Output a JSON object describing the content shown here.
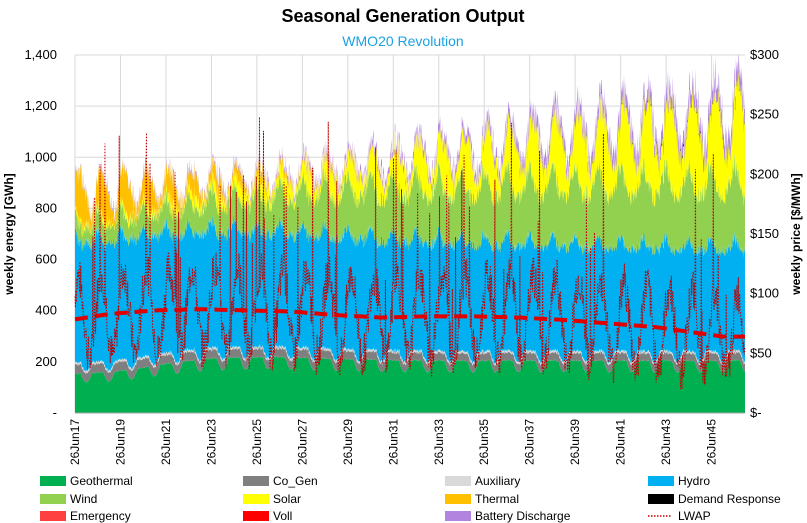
{
  "chart_data": {
    "type": "area",
    "title": "Seasonal Generation Output",
    "subtitle": "WMO20 Revolution",
    "ylabel": "weekly energy [GWh]",
    "y2label": "weekly price [$/MWh]",
    "ylim": [
      0,
      1400
    ],
    "y2lim": [
      0,
      300
    ],
    "yticks": [
      0,
      200,
      400,
      600,
      800,
      1000,
      1200,
      1400
    ],
    "ytick_labels": [
      "-",
      "200",
      "400",
      "600",
      "800",
      "1,000",
      "1,200",
      "1,400"
    ],
    "y2ticks": [
      0,
      50,
      100,
      150,
      200,
      250,
      300
    ],
    "y2tick_labels": [
      "$-",
      "$50",
      "$100",
      "$150",
      "$200",
      "$250",
      "$300"
    ],
    "x_start_year": 2017,
    "x_end_year": 2046,
    "xtick_labels": [
      "26Jun17",
      "26Jun19",
      "26Jun21",
      "26Jun23",
      "26Jun25",
      "26Jun27",
      "26Jun29",
      "26Jun31",
      "26Jun33",
      "26Jun35",
      "26Jun37",
      "26Jun39",
      "26Jun41",
      "26Jun43",
      "26Jun45"
    ],
    "grid": true,
    "legend_position": "bottom",
    "series_annual": {
      "years": [
        2017,
        2018,
        2019,
        2020,
        2021,
        2022,
        2023,
        2024,
        2025,
        2026,
        2027,
        2028,
        2029,
        2030,
        2031,
        2032,
        2033,
        2034,
        2035,
        2036,
        2037,
        2038,
        2039,
        2040,
        2041,
        2042,
        2043,
        2044,
        2045,
        2046
      ],
      "Geothermal": [
        150,
        155,
        160,
        170,
        185,
        200,
        210,
        215,
        218,
        220,
        218,
        215,
        212,
        210,
        208,
        205,
        205,
        205,
        205,
        205,
        205,
        205,
        205,
        205,
        205,
        205,
        205,
        205,
        205,
        205
      ],
      "Co_Gen": [
        35,
        35,
        35,
        35,
        35,
        35,
        35,
        34,
        34,
        33,
        33,
        32,
        32,
        31,
        31,
        30,
        30,
        30,
        30,
        30,
        30,
        30,
        30,
        30,
        30,
        30,
        30,
        30,
        30,
        30
      ],
      "Auxiliary": [
        8,
        8,
        8,
        8,
        8,
        8,
        8,
        8,
        8,
        8,
        8,
        8,
        8,
        8,
        8,
        8,
        8,
        8,
        8,
        8,
        8,
        8,
        8,
        8,
        8,
        8,
        8,
        8,
        8,
        8
      ],
      "Hydro": [
        480,
        485,
        488,
        490,
        488,
        480,
        475,
        472,
        470,
        468,
        465,
        462,
        460,
        455,
        452,
        448,
        445,
        442,
        440,
        438,
        436,
        434,
        432,
        430,
        428,
        426,
        424,
        422,
        420,
        418
      ],
      "Wind": [
        60,
        65,
        75,
        80,
        85,
        95,
        105,
        115,
        125,
        135,
        150,
        165,
        175,
        185,
        190,
        200,
        205,
        210,
        215,
        220,
        225,
        228,
        232,
        235,
        238,
        240,
        242,
        244,
        246,
        248
      ],
      "Solar": [
        10,
        12,
        14,
        16,
        20,
        25,
        30,
        35,
        40,
        45,
        55,
        62,
        70,
        80,
        90,
        100,
        110,
        120,
        130,
        140,
        150,
        160,
        170,
        180,
        190,
        200,
        210,
        220,
        230,
        240
      ],
      "Thermal": [
        120,
        115,
        105,
        95,
        80,
        65,
        50,
        40,
        30,
        22,
        15,
        12,
        10,
        8,
        6,
        5,
        4,
        3,
        3,
        2,
        2,
        2,
        2,
        2,
        2,
        2,
        2,
        2,
        2,
        2
      ],
      "Demand Response": [
        0,
        0,
        0,
        0,
        0,
        0,
        0,
        0,
        0,
        0,
        0,
        0,
        0,
        0,
        0,
        0,
        1,
        1,
        1,
        2,
        2,
        3,
        3,
        4,
        4,
        5,
        5,
        6,
        6,
        6
      ],
      "Emergency": [
        0,
        0,
        0,
        0,
        0,
        0,
        0,
        0,
        0,
        0,
        0,
        0,
        0,
        0,
        0,
        0,
        0,
        0,
        0,
        0,
        0,
        0,
        0,
        0,
        0,
        0,
        0,
        0,
        0,
        0
      ],
      "Voll": [
        0,
        0,
        0,
        0,
        0,
        0,
        0,
        0,
        0,
        0,
        0,
        0,
        0,
        0,
        0,
        0,
        0,
        0,
        0,
        0,
        0,
        0,
        0,
        0,
        0,
        0,
        0,
        0,
        0,
        0
      ],
      "Battery Discharge": [
        5,
        5,
        6,
        6,
        7,
        8,
        9,
        10,
        11,
        12,
        14,
        16,
        18,
        20,
        22,
        24,
        26,
        28,
        30,
        32,
        34,
        36,
        38,
        40,
        42,
        44,
        46,
        48,
        50,
        52
      ]
    },
    "lwap_trend": {
      "years": [
        2017,
        2019,
        2021,
        2023,
        2025,
        2027,
        2029,
        2031,
        2033,
        2035,
        2037,
        2039,
        2041,
        2043,
        2046
      ],
      "values": [
        77,
        83,
        86,
        87,
        86,
        85,
        82,
        80,
        81,
        81,
        80,
        78,
        75,
        72,
        64
      ]
    },
    "lwap_range": [
      20,
      248
    ],
    "legend": [
      {
        "name": "Geothermal",
        "color": "#00b050"
      },
      {
        "name": "Co_Gen",
        "color": "#7f7f7f"
      },
      {
        "name": "Auxiliary",
        "color": "#d9d9d9"
      },
      {
        "name": "Hydro",
        "color": "#00b0f0"
      },
      {
        "name": "Wind",
        "color": "#92d050"
      },
      {
        "name": "Solar",
        "color": "#ffff00"
      },
      {
        "name": "Thermal",
        "color": "#ffc000"
      },
      {
        "name": "Demand Response",
        "color": "#000000"
      },
      {
        "name": "Emergency",
        "color": "#ff4040"
      },
      {
        "name": "Voll",
        "color": "#ff0000"
      },
      {
        "name": "Battery Discharge",
        "color": "#b284e0"
      },
      {
        "name": "LWAP",
        "color": "#c00000",
        "style": "dotted"
      }
    ]
  }
}
